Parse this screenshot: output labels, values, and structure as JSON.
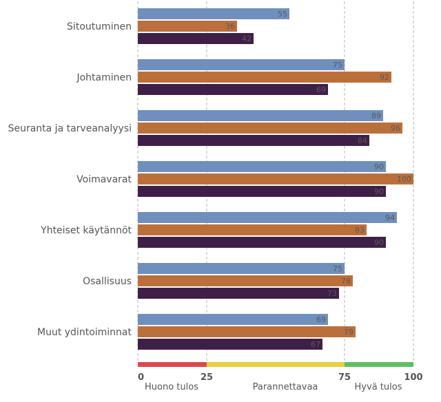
{
  "chart_data": {
    "type": "bar",
    "orientation": "horizontal",
    "categories": [
      "Sitoutuminen",
      "Johtaminen",
      "Seuranta ja tarveanalyysi",
      "Voimavarat",
      "Yhteiset käytännöt",
      "Osallisuus",
      "Muut ydintoiminnat"
    ],
    "series": [
      {
        "color": "#6f8fbd",
        "values": [
          55,
          75,
          89,
          90,
          94,
          75,
          69
        ]
      },
      {
        "color": "#bb6f3a",
        "values": [
          36,
          92,
          96,
          100,
          83,
          78,
          79
        ]
      },
      {
        "color": "#3f1f47",
        "values": [
          42,
          69,
          84,
          90,
          90,
          73,
          67
        ]
      }
    ],
    "xlim": [
      0,
      100
    ],
    "ticks": [
      "0",
      "25",
      "75",
      "100"
    ],
    "tick_values": [
      0,
      25,
      75,
      100
    ],
    "gridlines_at": [
      0,
      25,
      75,
      100
    ],
    "zones": [
      {
        "from": 0,
        "to": 25,
        "color": "#e04848",
        "label": "Huono tulos"
      },
      {
        "from": 25,
        "to": 75,
        "color": "#e8d040",
        "label": "Parannettavaa"
      },
      {
        "from": 75,
        "to": 100,
        "color": "#5cc062",
        "label": "Hyvä tulos"
      }
    ],
    "title": "",
    "xlabel": "",
    "ylabel": ""
  }
}
